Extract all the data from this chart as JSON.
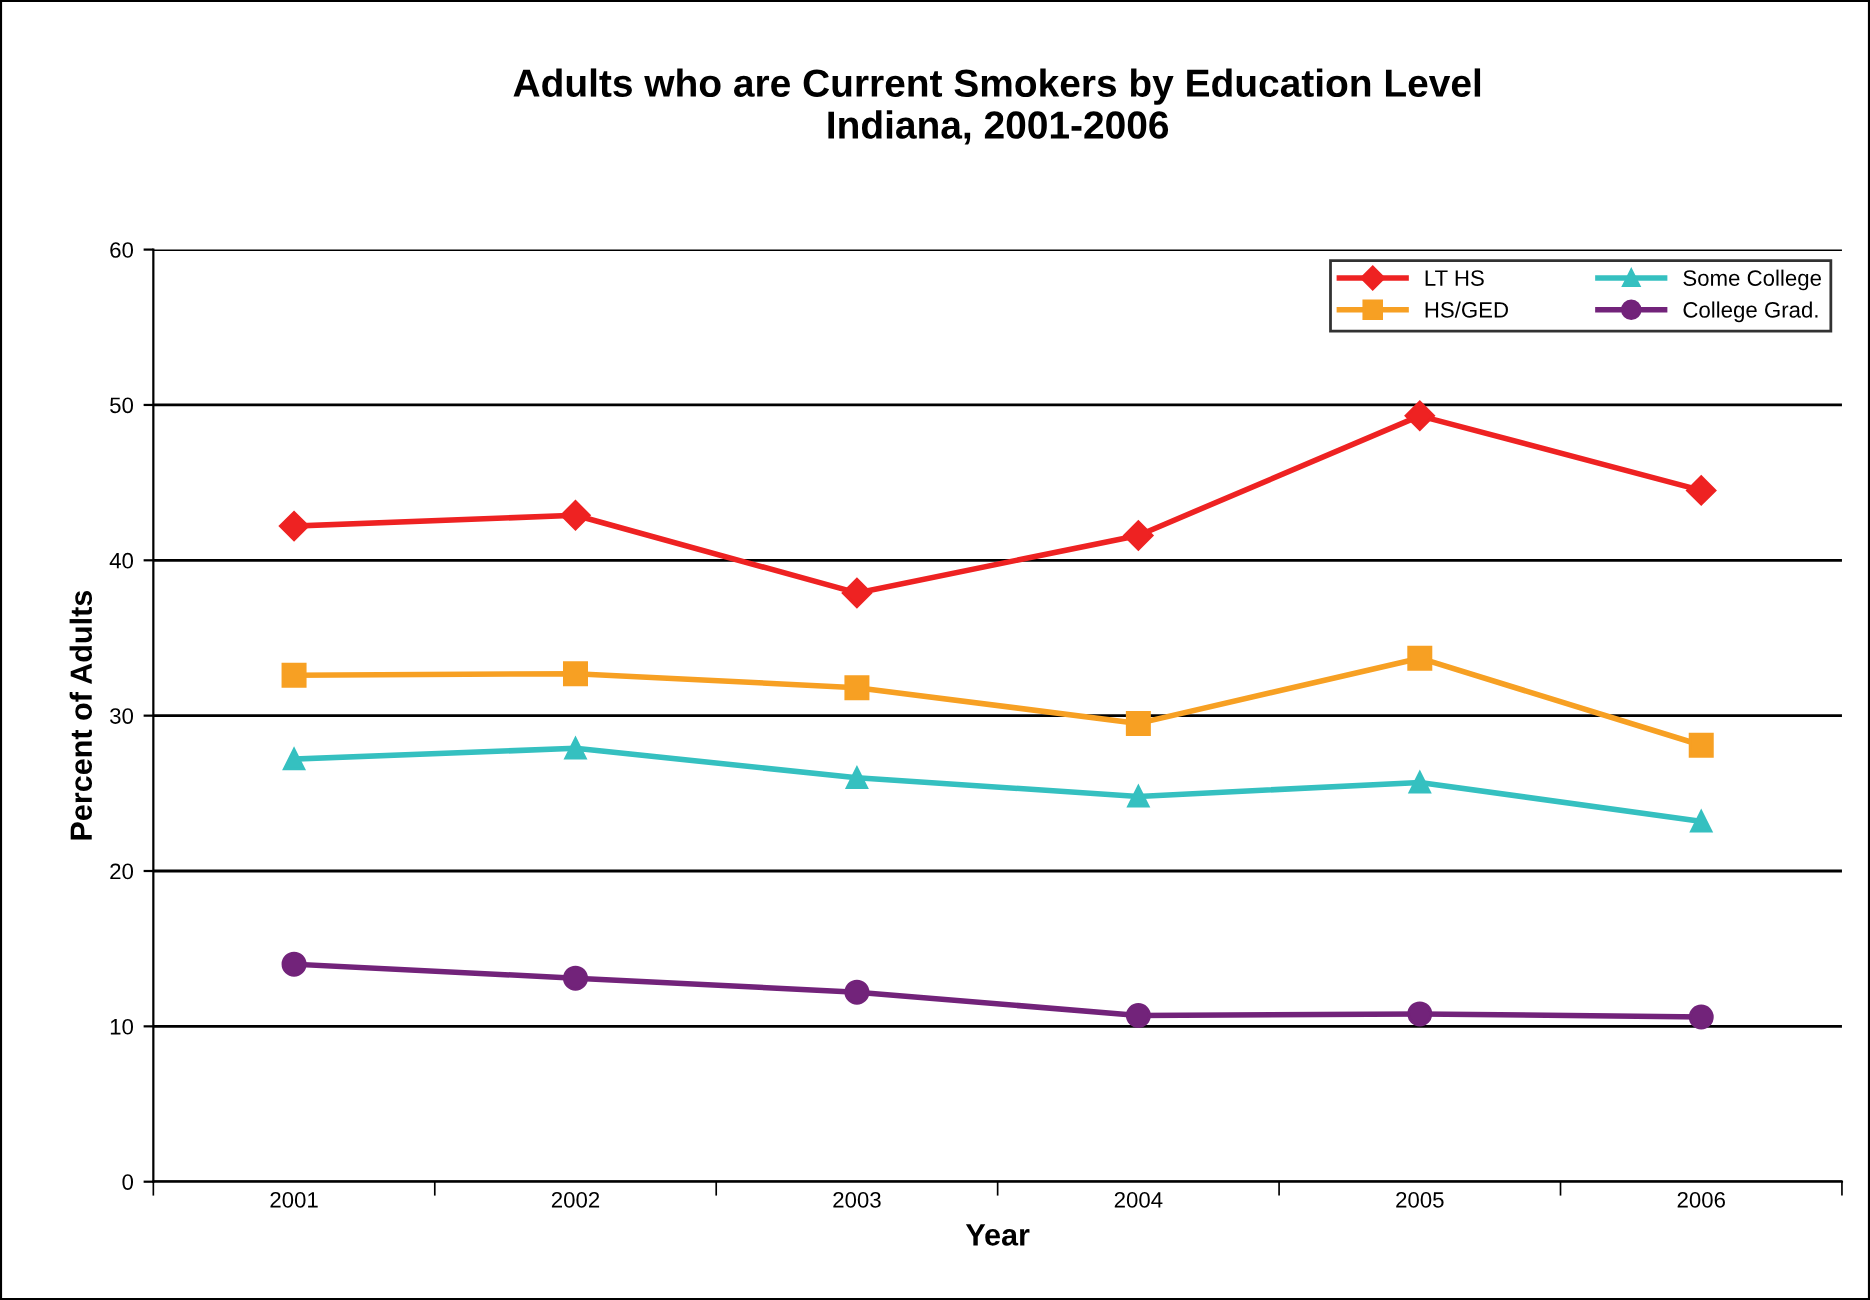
{
  "chart_data": {
    "type": "line",
    "title": "Adults who are Current Smokers by Education Level\nIndiana, 2001-2006",
    "xlabel": "Year",
    "ylabel": "Percent of Adults",
    "categories": [
      "2001",
      "2002",
      "2003",
      "2004",
      "2005",
      "2006"
    ],
    "series": [
      {
        "name": "LT HS",
        "color": "#ee2222",
        "marker": "diamond",
        "values": [
          42.2,
          42.9,
          37.9,
          41.6,
          49.3,
          44.5
        ]
      },
      {
        "name": "HS/GED",
        "color": "#f7a023",
        "marker": "square",
        "values": [
          32.6,
          32.7,
          31.8,
          29.5,
          33.7,
          28.1
        ]
      },
      {
        "name": "Some College",
        "color": "#35c0c0",
        "marker": "triangle",
        "values": [
          27.2,
          27.9,
          26.0,
          24.8,
          25.7,
          23.2
        ]
      },
      {
        "name": "College Grad.",
        "color": "#72237a",
        "marker": "circle",
        "values": [
          14.0,
          13.1,
          12.2,
          10.7,
          10.8,
          10.6
        ]
      }
    ],
    "ylim": [
      0,
      60
    ],
    "yticks": [
      0,
      10,
      20,
      30,
      40,
      50,
      60
    ],
    "grid": "y",
    "legend": "top right"
  }
}
